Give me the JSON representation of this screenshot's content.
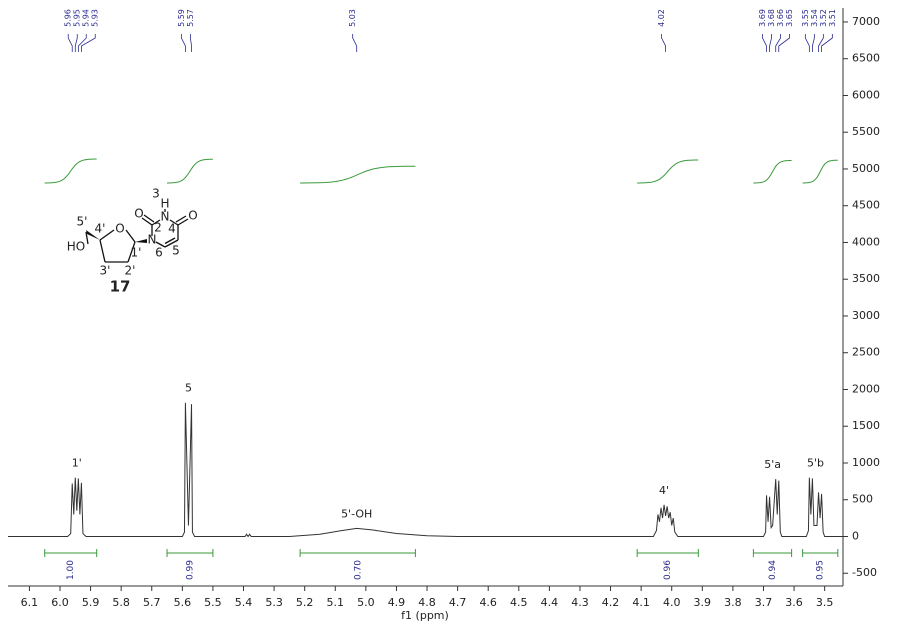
{
  "chart_data": {
    "type": "line",
    "xlabel": "f1 (ppm)",
    "color": "#333333",
    "x": [
      6.17,
      5.975,
      5.965,
      5.96,
      5.955,
      5.95,
      5.945,
      5.94,
      5.935,
      5.93,
      5.925,
      5.915,
      5.6,
      5.593,
      5.59,
      5.58,
      5.57,
      5.567,
      5.56,
      5.395,
      5.39,
      5.385,
      5.38,
      5.375,
      5.25,
      5.15,
      5.08,
      5.03,
      4.98,
      4.9,
      4.8,
      4.7,
      4.06,
      4.05,
      4.045,
      4.04,
      4.035,
      4.03,
      4.025,
      4.02,
      4.015,
      4.01,
      4.005,
      4.0,
      3.995,
      3.99,
      3.98,
      3.7,
      3.693,
      3.69,
      3.685,
      3.68,
      3.675,
      3.67,
      3.66,
      3.655,
      3.65,
      3.645,
      3.64,
      3.56,
      3.553,
      3.55,
      3.545,
      3.54,
      3.535,
      3.525,
      3.52,
      3.515,
      3.51,
      3.505,
      3.5,
      3.44
    ],
    "values": [
      0,
      0,
      40,
      720,
      300,
      800,
      350,
      790,
      300,
      730,
      40,
      0,
      0,
      60,
      1820,
      150,
      1800,
      60,
      0,
      0,
      30,
      0,
      30,
      0,
      0,
      30,
      80,
      110,
      90,
      40,
      10,
      0,
      0,
      80,
      300,
      200,
      390,
      250,
      430,
      280,
      410,
      250,
      330,
      150,
      250,
      60,
      0,
      0,
      60,
      560,
      200,
      540,
      120,
      150,
      780,
      300,
      760,
      60,
      0,
      0,
      80,
      800,
      300,
      790,
      150,
      150,
      600,
      250,
      580,
      60,
      0,
      0
    ],
    "xlim": [
      6.17,
      3.44
    ],
    "xticks": [
      6.1,
      {
        "value": 6,
        "label": "6.0"
      },
      5.9,
      5.8,
      5.7,
      5.6,
      5.5,
      5.4,
      5.3,
      5.2,
      5.1,
      {
        "value": 5,
        "label": "5.0"
      },
      4.9,
      4.8,
      4.7,
      4.6,
      4.5,
      4.4,
      4.3,
      4.2,
      4.1,
      {
        "value": 4,
        "label": "4.0"
      },
      3.9,
      3.8,
      3.7,
      3.6,
      3.5
    ],
    "ylim": [
      -660,
      7190
    ],
    "yticks": [
      7000,
      6500,
      6000,
      5500,
      5000,
      4500,
      4000,
      3500,
      3000,
      2500,
      2000,
      1500,
      1000,
      500,
      0,
      -500
    ],
    "peak_labels": [
      5.96,
      5.95,
      5.94,
      5.93,
      5.59,
      5.57,
      5.03,
      4.02,
      3.69,
      3.68,
      3.66,
      3.65,
      3.55,
      3.54,
      3.52,
      3.51
    ],
    "annotations": [
      {
        "text": "1'",
        "x": 5.945
      },
      {
        "text": "5",
        "x": 5.58
      },
      {
        "text": "5'-OH",
        "x": 5.03
      },
      {
        "text": "4'",
        "x": 4.025
      },
      {
        "text": "5'a",
        "x": 3.67
      },
      {
        "text": "5'b",
        "x": 3.53
      }
    ],
    "integrals": {
      "ranges": [
        [
          6.05,
          5.88
        ],
        [
          5.65,
          5.5
        ],
        [
          5.215,
          4.838
        ],
        [
          4.113,
          3.913
        ],
        [
          3.733,
          3.608
        ],
        [
          3.572,
          3.457
        ]
      ],
      "values": [
        1,
        0.99,
        0.7,
        0.96,
        0.94,
        0.95
      ],
      "value_labels": [
        "1.00",
        "0.99",
        "0.70",
        "0.96",
        "0.94",
        "0.95"
      ],
      "color": "#3a9a3a"
    },
    "structure": {
      "labels": [
        "HO",
        "5'",
        "4'",
        "O",
        "1'",
        "N",
        "2",
        "O",
        "N",
        "H",
        "3",
        "4",
        "O",
        "5",
        "6",
        "3'",
        "2'"
      ],
      "compound": "17"
    }
  }
}
